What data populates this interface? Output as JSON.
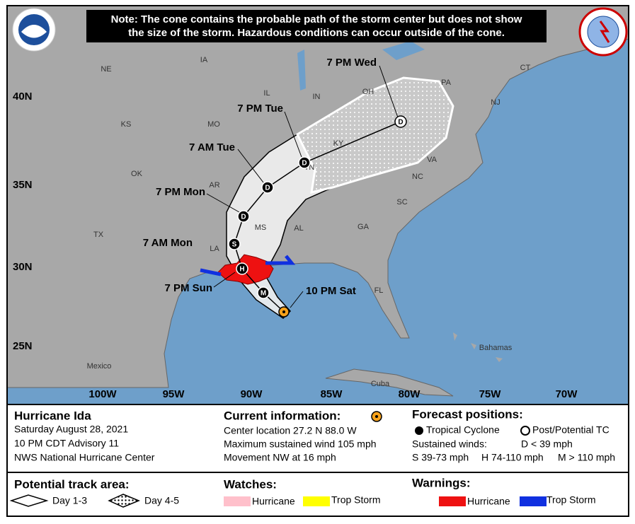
{
  "note": [
    "Note: The cone contains the probable path of the storm center but does not show",
    "the size of the storm. Hazardous conditions can occur outside of the cone."
  ],
  "map": {
    "places": [
      "NE",
      "IA",
      "IL",
      "IN",
      "OH",
      "PA",
      "CT",
      "NJ",
      "KS",
      "MO",
      "KY",
      "VA",
      "OK",
      "AR",
      "TN",
      "NC",
      "SC",
      "MS",
      "AL",
      "GA",
      "TX",
      "LA",
      "FL",
      "Mexico",
      "Bahamas",
      "Cuba"
    ],
    "latitudes": [
      "40N",
      "35N",
      "30N",
      "25N"
    ],
    "longitudes": [
      "100W",
      "95W",
      "90W",
      "85W",
      "80W",
      "75W",
      "70W"
    ],
    "forecast_points": [
      {
        "label": "10 PM Sat"
      },
      {
        "marker": "M"
      },
      {
        "label": "7 PM Sun",
        "marker": "H"
      },
      {
        "label": "7 AM Mon",
        "marker": "S"
      },
      {
        "label": "7 PM Mon",
        "marker": "D"
      },
      {
        "label": "7 AM Tue",
        "marker": "D"
      },
      {
        "label": "7 PM Tue",
        "marker": "D"
      },
      {
        "label": "7 PM Wed",
        "marker": "D"
      }
    ]
  },
  "storm": {
    "name": "Hurricane Ida",
    "date": "Saturday August 28, 2021",
    "advisory": "10 PM CDT Advisory 11",
    "source": "NWS National Hurricane Center"
  },
  "current": {
    "title": "Current information:",
    "location": "Center location 27.2 N 88.0 W",
    "wind": "Maximum sustained wind 105 mph",
    "movement": "Movement NW at 16 mph"
  },
  "forecast": {
    "title": "Forecast positions:",
    "tropical": "Tropical Cyclone",
    "post": "Post/Potential TC",
    "winds": "Sustained winds:",
    "d": "D < 39 mph",
    "s": "S 39-73 mph",
    "h": "H 74-110 mph",
    "m": "M > 110 mph"
  },
  "track_area": {
    "title": "Potential track area:",
    "day13": "Day 1-3",
    "day45": "Day 4-5"
  },
  "watches": {
    "title": "Watches:",
    "hurricane": "Hurricane",
    "storm": "Trop Storm"
  },
  "warnings": {
    "title": "Warnings:",
    "hurricane": "Hurricane",
    "storm": "Trop Storm"
  }
}
